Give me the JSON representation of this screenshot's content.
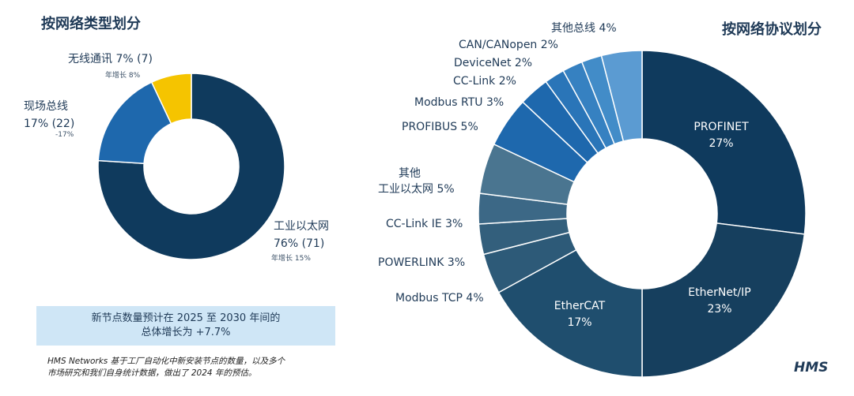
{
  "left": {
    "title": "按网络类型划分",
    "labels": {
      "wireless": {
        "line1": "无线通讯 7% (7)",
        "sub": "年增长 8%"
      },
      "fieldbus": {
        "line1": "现场总线",
        "line2": "17% (22)",
        "sub": "-17%"
      },
      "ethernet": {
        "line1": "工业以太网",
        "line2": "76% (71)",
        "sub": "年增长 15%"
      }
    }
  },
  "right": {
    "title": "按网络协议划分",
    "labels": {
      "other_bus": "其他总线 4%",
      "canopen": "CAN/CANopen 2%",
      "devicenet": "DeviceNet 2%",
      "cclink": "CC-Link 2%",
      "modbus_rtu": "Modbus RTU 3%",
      "profibus": "PROFIBUS 5%",
      "other_eth_1": "其他",
      "other_eth_2": "工业以太网 5%",
      "cclink_ie": "CC-Link IE 3%",
      "powerlink": "POWERLINK 3%",
      "modbus_tcp": "Modbus TCP 4%",
      "profinet_name": "PROFINET",
      "profinet_pct": "27%",
      "ethernetip_name": "EtherNet/IP",
      "ethernetip_pct": "23%",
      "ethercat_name": "EtherCAT",
      "ethercat_pct": "17%"
    }
  },
  "banner": {
    "line1": "新节点数量预计在 2025 至 2030 年间的",
    "line2": "总体增长为 +7.7%"
  },
  "note": {
    "line1": "HMS Networks 基于工厂自动化中新安装节点的数量，以及多个",
    "line2": "市场研究和我们自身统计数据，做出了 2024 年的预估。"
  },
  "logo": "HMS",
  "chart_data": [
    {
      "type": "pie",
      "title": "按网络类型划分",
      "categories": [
        "工业以太网",
        "现场总线",
        "无线通讯"
      ],
      "values": [
        76,
        17,
        7
      ],
      "colors": [
        "#0f3a5d",
        "#1e68ad",
        "#f5c400"
      ]
    },
    {
      "type": "pie",
      "title": "按网络协议划分",
      "categories": [
        "PROFINET",
        "EtherNet/IP",
        "EtherCAT",
        "Modbus TCP",
        "POWERLINK",
        "CC-Link IE",
        "其他 工业以太网",
        "PROFIBUS",
        "Modbus RTU",
        "CC-Link",
        "DeviceNet",
        "CAN/CANopen",
        "其他总线"
      ],
      "values": [
        27,
        23,
        17,
        4,
        3,
        3,
        5,
        5,
        3,
        2,
        2,
        2,
        4
      ],
      "colors": [
        "#0f3a5d",
        "#163f5e",
        "#1f4e6e",
        "#2d5a78",
        "#335f7c",
        "#3c6886",
        "#4a7590",
        "#1e68ad",
        "#1e68ad",
        "#2a75b8",
        "#3681c1",
        "#428cc8",
        "#5b9bd2"
      ]
    }
  ]
}
